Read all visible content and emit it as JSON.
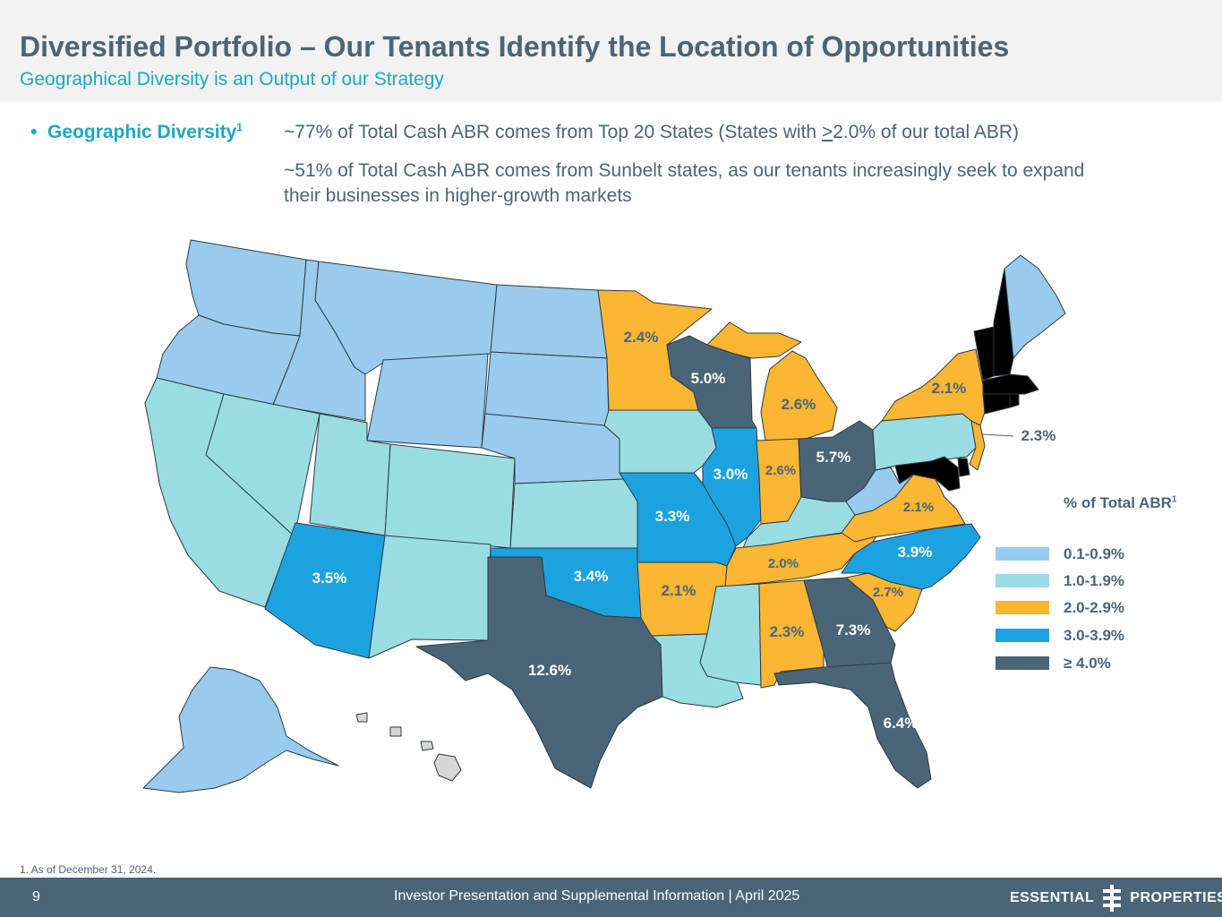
{
  "header": {
    "title": "Diversified Portfolio – Our Tenants Identify the Location of Opportunities",
    "subtitle": "Geographical Diversity is an Output of our Strategy"
  },
  "bullet": {
    "marker": "•",
    "label": "Geographic Diversity",
    "sup": "1",
    "line1_prefix": "~77% of Total Cash ABR comes from Top 20 States (States with ",
    "line1_ge": ">",
    "line1_suffix": "2.0% of our total ABR)",
    "line2": "~51% of Total Cash ABR comes from Sunbelt states, as our tenants increasingly seek to expand their businesses in higher-growth markets"
  },
  "colors": {
    "tier1": "#99cbee",
    "tier2": "#99dde3",
    "tier3": "#fbb634",
    "tier4": "#1ca3df",
    "tier5": "#4a6577",
    "hawaii": "#d6d6d6",
    "accent": "#1ba8c2",
    "text": "#4a6577"
  },
  "map": {
    "states": [
      {
        "state": "Washington",
        "tier": "tier1"
      },
      {
        "state": "Oregon",
        "tier": "tier1"
      },
      {
        "state": "Idaho",
        "tier": "tier1"
      },
      {
        "state": "Montana",
        "tier": "tier1"
      },
      {
        "state": "Wyoming",
        "tier": "tier1"
      },
      {
        "state": "North Dakota",
        "tier": "tier1"
      },
      {
        "state": "South Dakota",
        "tier": "tier1"
      },
      {
        "state": "Nebraska",
        "tier": "tier1"
      },
      {
        "state": "Alaska",
        "tier": "tier1"
      },
      {
        "state": "West Virginia",
        "tier": "tier1"
      },
      {
        "state": "Maine",
        "tier": "tier1"
      },
      {
        "state": "California",
        "tier": "tier2"
      },
      {
        "state": "Nevada",
        "tier": "tier2"
      },
      {
        "state": "Utah",
        "tier": "tier2"
      },
      {
        "state": "Colorado",
        "tier": "tier2"
      },
      {
        "state": "New Mexico",
        "tier": "tier2"
      },
      {
        "state": "Kansas",
        "tier": "tier2"
      },
      {
        "state": "Iowa",
        "tier": "tier2"
      },
      {
        "state": "Louisiana",
        "tier": "tier2"
      },
      {
        "state": "Mississippi",
        "tier": "tier2"
      },
      {
        "state": "Kentucky",
        "tier": "tier2"
      },
      {
        "state": "Pennsylvania",
        "tier": "tier2"
      },
      {
        "state": "Minnesota",
        "tier": "tier3",
        "label": "2.4%"
      },
      {
        "state": "Michigan",
        "tier": "tier3",
        "label": "2.6%"
      },
      {
        "state": "Indiana",
        "tier": "tier3",
        "label": "2.6%"
      },
      {
        "state": "New York",
        "tier": "tier3",
        "label": "2.1%"
      },
      {
        "state": "New Jersey",
        "tier": "tier3",
        "label": "2.3%"
      },
      {
        "state": "Virginia",
        "tier": "tier3",
        "label": "2.1%"
      },
      {
        "state": "Tennessee",
        "tier": "tier3",
        "label": "2.0%"
      },
      {
        "state": "Arkansas",
        "tier": "tier3",
        "label": "2.1%"
      },
      {
        "state": "Alabama",
        "tier": "tier3",
        "label": "2.3%"
      },
      {
        "state": "South Carolina",
        "tier": "tier3",
        "label": "2.7%"
      },
      {
        "state": "Arizona",
        "tier": "tier4",
        "label": "3.5%"
      },
      {
        "state": "Oklahoma",
        "tier": "tier4",
        "label": "3.4%"
      },
      {
        "state": "Missouri",
        "tier": "tier4",
        "label": "3.3%"
      },
      {
        "state": "Illinois",
        "tier": "tier4",
        "label": "3.0%"
      },
      {
        "state": "North Carolina",
        "tier": "tier4",
        "label": "3.9%"
      },
      {
        "state": "Texas",
        "tier": "tier5",
        "label": "12.6%"
      },
      {
        "state": "Wisconsin",
        "tier": "tier5",
        "label": "5.0%"
      },
      {
        "state": "Ohio",
        "tier": "tier5",
        "label": "5.7%"
      },
      {
        "state": "Georgia",
        "tier": "tier5",
        "label": "7.3%"
      },
      {
        "state": "Florida",
        "tier": "tier5",
        "label": "6.4%"
      },
      {
        "state": "Hawaii",
        "tier": "hawaii"
      }
    ]
  },
  "legend": {
    "title": "% of Total ABR",
    "title_sup": "1",
    "items": [
      {
        "label": "0.1-0.9%",
        "tier": "tier1"
      },
      {
        "label": "1.0-1.9%",
        "tier": "tier2"
      },
      {
        "label": "2.0-2.9%",
        "tier": "tier3"
      },
      {
        "label": "3.0-3.9%",
        "tier": "tier4"
      },
      {
        "label": "≥ 4.0%",
        "tier": "tier5"
      }
    ]
  },
  "footnote": "1. As of December 31, 2024.",
  "footer": {
    "page": "9",
    "text": "Investor Presentation and Supplemental Information |  April 2025",
    "logo_left": "ESSENTIAL",
    "logo_right": "PROPERTIES"
  }
}
